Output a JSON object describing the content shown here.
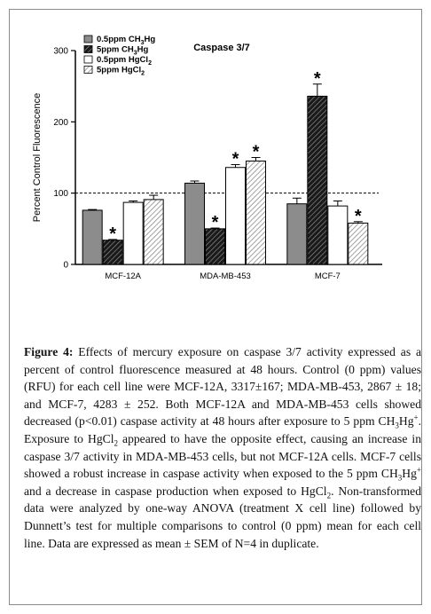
{
  "chart_data": {
    "type": "bar",
    "title": "Caspase 3/7",
    "ylabel": "Percent Control Fluorescence",
    "xlabel": "",
    "ylim": [
      0,
      300
    ],
    "yticks": [
      0,
      100,
      200,
      300
    ],
    "reference_line": 100,
    "categories": [
      "MCF-12A",
      "MDA-MB-453",
      "MCF-7"
    ],
    "legend_position": "top-left",
    "series": [
      {
        "name": "0.5ppm CH3Hg",
        "name_parts": [
          "0.5ppm CH",
          "3",
          "Hg"
        ],
        "pattern": "solid-gray",
        "values": [
          76,
          114,
          85
        ],
        "errors": [
          1,
          3,
          8
        ],
        "significant": [
          false,
          false,
          false
        ]
      },
      {
        "name": "5ppm CH3Hg",
        "name_parts": [
          "5ppm CH",
          "3",
          "Hg"
        ],
        "pattern": "dark-hatch",
        "values": [
          34,
          50,
          236
        ],
        "errors": [
          1,
          1,
          17
        ],
        "significant": [
          true,
          true,
          true
        ]
      },
      {
        "name": "0.5ppm HgCl2",
        "name_parts": [
          "0.5ppm HgCl",
          "2",
          ""
        ],
        "pattern": "white",
        "values": [
          87,
          136,
          82
        ],
        "errors": [
          2,
          4,
          7
        ],
        "significant": [
          false,
          true,
          false
        ]
      },
      {
        "name": "5ppm HgCl2",
        "name_parts": [
          "5ppm HgCl",
          "2",
          ""
        ],
        "pattern": "light-hatch",
        "values": [
          91,
          145,
          58
        ],
        "errors": [
          6,
          5,
          2
        ],
        "significant": [
          false,
          true,
          true
        ]
      }
    ],
    "significance_marker": "*"
  },
  "caption": {
    "label": "Figure 4:",
    "p1": " Effects of mercury exposure on caspase 3/7 activity expressed as a percent of control fluorescence measured at 48 hours. Control (0 ppm) values (RFU) for each cell line were MCF-12A, 3317±167; MDA-MB-453, 2867 ± 18; and MCF-7, 4283 ± 252. Both MCF-12A and MDA-MB-453 cells showed decreased (p<0.01) caspase activity at 48 hours after exposure to 5 ppm CH",
    "sub1": "3",
    "p2": "Hg",
    "sup1": "+",
    "p3": ". Exposure to HgCl",
    "sub2": "2",
    "p4": " appeared to have the opposite effect, causing an increase in caspase 3/7 activity in MDA-MB-453 cells, but not MCF-12A cells. MCF-7 cells showed a robust increase in caspase activity when exposed to the 5 ppm CH",
    "sub3": "3",
    "p5": "Hg",
    "sup2": "+",
    "p6": " and a decrease in caspase production when exposed to HgCl",
    "sub4": "2",
    "p7": ". Non-transformed data were analyzed by one-way ANOVA (treatment X cell line) followed by Dunnett’s test for multiple comparisons to control (0 ppm) mean for each cell line. Data are expressed as mean ± SEM of N=4 in duplicate."
  }
}
